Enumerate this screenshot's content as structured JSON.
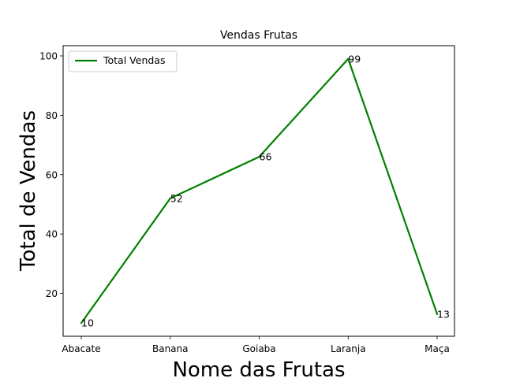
{
  "chart_data": {
    "type": "line",
    "title": "Vendas Frutas",
    "xlabel": "Nome das Frutas",
    "ylabel": "Total de Vendas",
    "categories": [
      "Abacate",
      "Banana",
      "Goiaba",
      "Laranja",
      "Maça"
    ],
    "series": [
      {
        "name": "Total Vendas",
        "values": [
          10,
          52,
          66,
          99,
          13
        ],
        "color": "#008000"
      }
    ],
    "data_labels": [
      "10",
      "52",
      "66",
      "99",
      "13"
    ],
    "yticks": [
      20,
      40,
      60,
      80,
      100
    ],
    "ylim": [
      5.55,
      103.45
    ],
    "legend_position": "upper-left",
    "grid": false
  }
}
